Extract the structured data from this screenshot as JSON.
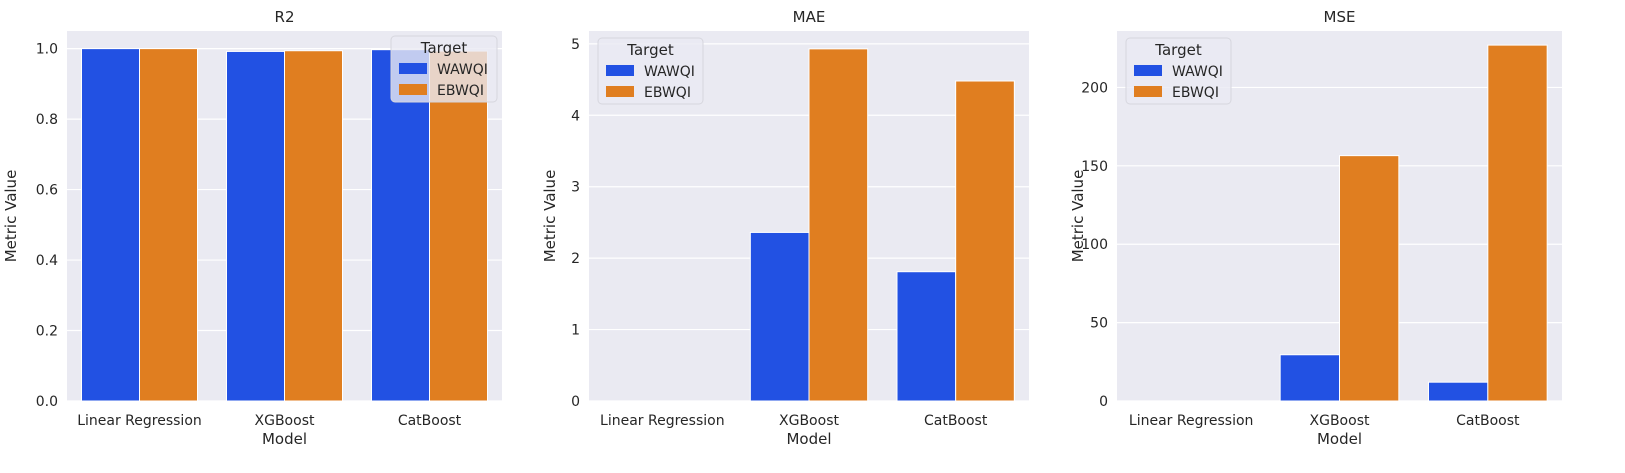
{
  "colors": {
    "WAWQI": "#2251e3",
    "EBWQI": "#e07e20",
    "axes_bg": "#eaeaf2",
    "grid": "#ffffff"
  },
  "chart_data": [
    {
      "type": "bar",
      "title": "R2",
      "xlabel": "Model",
      "ylabel": "Metric Value",
      "categories": [
        "Linear Regression",
        "XGBoost",
        "CatBoost"
      ],
      "series": [
        {
          "name": "WAWQI",
          "values": [
            1.0,
            0.992,
            0.997
          ]
        },
        {
          "name": "EBWQI",
          "values": [
            1.0,
            0.994,
            0.993
          ]
        }
      ],
      "ylim": [
        0,
        1.05
      ],
      "yticks": [
        0.0,
        0.2,
        0.4,
        0.6,
        0.8,
        1.0
      ],
      "ytick_labels": [
        "0.0",
        "0.2",
        "0.4",
        "0.6",
        "0.8",
        "1.0"
      ],
      "grid": true,
      "legend": {
        "title": "Target",
        "placement": "top-right"
      }
    },
    {
      "type": "bar",
      "title": "MAE",
      "xlabel": "Model",
      "ylabel": "Metric Value",
      "categories": [
        "Linear Regression",
        "XGBoost",
        "CatBoost"
      ],
      "series": [
        {
          "name": "WAWQI",
          "values": [
            0.0,
            2.36,
            1.81
          ]
        },
        {
          "name": "EBWQI",
          "values": [
            0.0,
            4.93,
            4.48
          ]
        }
      ],
      "ylim": [
        0,
        5.18
      ],
      "yticks": [
        0,
        1,
        2,
        3,
        4,
        5
      ],
      "ytick_labels": [
        "0",
        "1",
        "2",
        "3",
        "4",
        "5"
      ],
      "grid": true,
      "legend": {
        "title": "Target",
        "placement": "top-left"
      }
    },
    {
      "type": "bar",
      "title": "MSE",
      "xlabel": "Model",
      "ylabel": "Metric Value",
      "categories": [
        "Linear Regression",
        "XGBoost",
        "CatBoost"
      ],
      "series": [
        {
          "name": "WAWQI",
          "values": [
            0.0,
            29.5,
            12.0
          ]
        },
        {
          "name": "EBWQI",
          "values": [
            0.0,
            156.5,
            227.0
          ]
        }
      ],
      "ylim": [
        0,
        236
      ],
      "yticks": [
        0,
        50,
        100,
        150,
        200
      ],
      "ytick_labels": [
        "0",
        "50",
        "100",
        "150",
        "200"
      ],
      "grid": true,
      "legend": {
        "title": "Target",
        "placement": "top-left"
      }
    }
  ]
}
